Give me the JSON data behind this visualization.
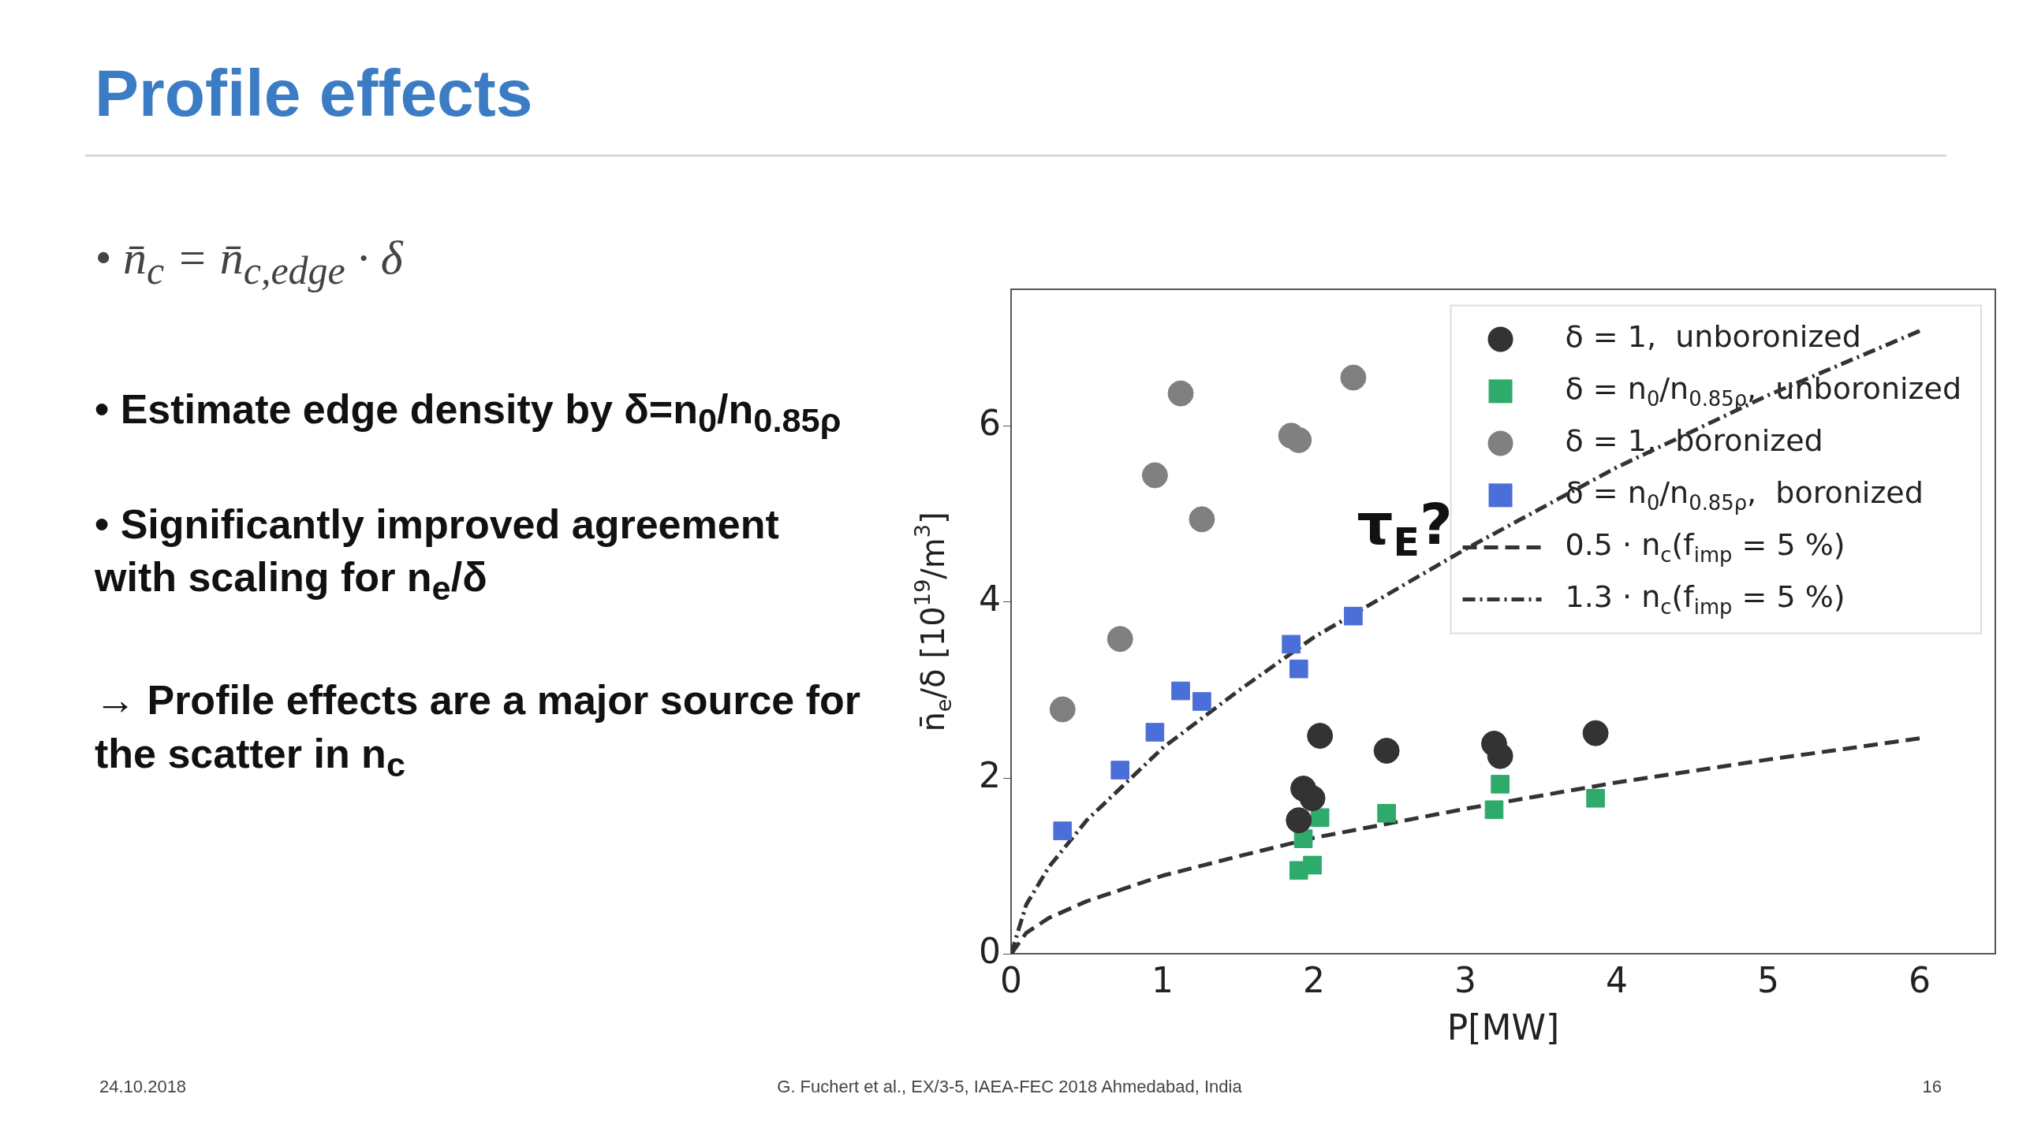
{
  "chart_data": {
    "type": "scatter",
    "title": "Profile effects",
    "xlabel": "P[MW]",
    "ylabel": "n̄$_{e}$/δ [10$^{19}$/m$^{3}$]",
    "xlim": [
      0,
      6.5
    ],
    "ylim": [
      0,
      7.55
    ],
    "xticks": [
      0,
      1,
      2,
      3,
      4,
      5,
      6
    ],
    "yticks": [
      0,
      2,
      4,
      6
    ],
    "grid": false,
    "legend": "top right",
    "series": [
      {
        "name": "δ = 1,  unboronized",
        "marker": "circle",
        "color": "#333333",
        "x": [
          2.04,
          2.48,
          3.19,
          3.23,
          3.86,
          1.93,
          1.99,
          1.9
        ],
        "values": [
          2.48,
          2.31,
          2.39,
          2.25,
          2.51,
          1.88,
          1.77,
          1.52
        ]
      },
      {
        "name": "δ = n$_{0}$/n$_{0.85ρ}$,  unboronized",
        "marker": "square",
        "color": "#2eaa6a",
        "x": [
          2.04,
          2.48,
          3.23,
          3.19,
          3.86,
          1.93,
          1.9,
          1.99
        ],
        "values": [
          1.55,
          1.6,
          1.93,
          1.64,
          1.77,
          1.31,
          0.95,
          1.01
        ]
      },
      {
        "name": "δ = 1,  boronized",
        "marker": "circle",
        "color": "#808080",
        "x": [
          0.34,
          0.72,
          0.95,
          1.26,
          1.12,
          1.85,
          1.9,
          2.26
        ],
        "values": [
          2.78,
          3.58,
          5.44,
          4.94,
          6.37,
          5.89,
          5.84,
          6.55
        ]
      },
      {
        "name": "δ = n$_{0}$/n$_{0.85ρ}$,  boronized",
        "marker": "square",
        "color": "#4a6fd8",
        "x": [
          0.34,
          0.72,
          0.95,
          1.12,
          1.26,
          1.85,
          1.9,
          2.26
        ],
        "values": [
          1.4,
          2.09,
          2.52,
          2.99,
          2.87,
          3.52,
          3.24,
          3.84
        ]
      },
      {
        "name": "0.5 · n$_{c}$(f$_{imp}$ = 5 %)",
        "type": "line",
        "marker": "none",
        "line_style": "dashed",
        "color": "#333333",
        "x": [
          0,
          0.1,
          0.25,
          0.5,
          1,
          1.5,
          2,
          3,
          4,
          5,
          6
        ],
        "values": [
          0,
          0.24,
          0.41,
          0.6,
          0.89,
          1.11,
          1.32,
          1.65,
          1.95,
          2.21,
          2.45
        ]
      },
      {
        "name": "1.3 · n$_{c}$(f$_{imp}$ = 5 %)",
        "type": "line",
        "marker": "none",
        "line_style": "dashdot",
        "color": "#333333",
        "x": [
          0,
          0.1,
          0.25,
          0.5,
          1,
          1.5,
          2,
          3,
          4,
          5,
          6
        ],
        "values": [
          0,
          0.56,
          0.99,
          1.52,
          2.34,
          2.99,
          3.6,
          4.6,
          5.53,
          6.35,
          7.08
        ]
      }
    ],
    "annotations": [
      "•  n̄$_{c}$ = n̄$_{c,edge}$ · δ",
      "•  Estimate edge density by δ=n$_{0}$/n$_{0.85ρ}$",
      "•  Significantly improved agreement with scaling for n$_{e}$/δ",
      "→ Profile effects are a major source for the scatter in n$_{c}$",
      "24.10.2018",
      "G. Fuchert et al., EX/3-5, IAEA-FEC 2018 Ahmedabad, India",
      "16",
      "τ$_{E}$?"
    ]
  }
}
